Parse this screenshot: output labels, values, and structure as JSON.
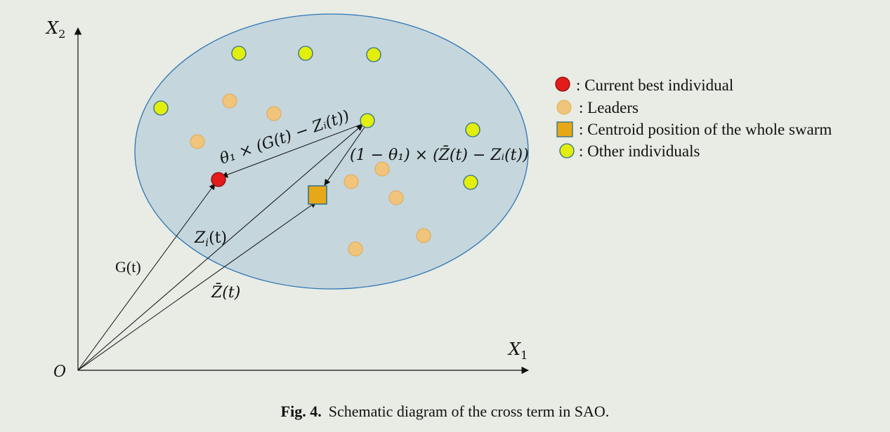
{
  "axes": {
    "y_label": "X",
    "y_sub": "2",
    "x_label": "X",
    "x_sub": "1",
    "origin": "O"
  },
  "vectors": {
    "g": "G(t)",
    "zi_main": "Z",
    "zi_sub": "i",
    "zi_rest": "(t)",
    "zbar": "Z̄(t)"
  },
  "formulas": {
    "term1": "θ₁ × (G(t) − Zᵢ(t))",
    "term2": "(1 − θ₁) × (Z̄(t) − Zᵢ(t))"
  },
  "legend": {
    "items": [
      {
        "label": ": Current best individual",
        "marker": "circle",
        "color": "#e31b1b"
      },
      {
        "label": ": Leaders",
        "marker": "circle",
        "color": "#f0c47a"
      },
      {
        "label": ": Centroid position of the whole swarm",
        "marker": "square",
        "color": "#e6a817"
      },
      {
        "label": ": Other individuals",
        "marker": "circle",
        "color": "#e2ee0c"
      }
    ]
  },
  "colors": {
    "swarm_fill": "#c5d6dc",
    "swarm_stroke": "#2e75b6",
    "best": "#e31b1b",
    "leader": "#f0c47a",
    "centroid": "#e6a817",
    "other": "#e2ee0c"
  },
  "caption": {
    "fig": "Fig. 4.",
    "text": "Schematic diagram of the cross term in SAO."
  }
}
